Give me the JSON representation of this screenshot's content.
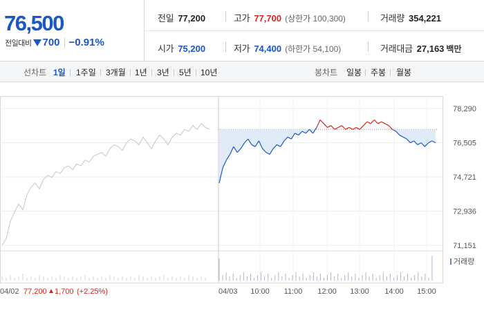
{
  "quote": {
    "current_price": "76,500",
    "change_label": "전일대비",
    "change_value": "700",
    "change_rate": "−0.91%",
    "colors": {
      "up": "#d8251d",
      "down": "#1a56c6"
    }
  },
  "stats": {
    "prev_close": {
      "label": "전일",
      "value": "77,200"
    },
    "high": {
      "label": "고가",
      "value": "77,700",
      "sub": "(상한가 100,300)"
    },
    "volume": {
      "label": "거래량",
      "value": "354,221"
    },
    "open": {
      "label": "시가",
      "value": "75,200"
    },
    "low": {
      "label": "저가",
      "value": "74,400",
      "sub": "(하한가 54,100)"
    },
    "turnover": {
      "label": "거래대금",
      "value": "27,163",
      "unit": "백만"
    }
  },
  "tabs": {
    "line_label": "선차트",
    "line_periods": [
      "1일",
      "1주일",
      "3개월",
      "1년",
      "3년",
      "5년",
      "10년"
    ],
    "active_period": "1일",
    "candle_label": "봉차트",
    "candle_periods": [
      "일봉",
      "주봉",
      "월봉"
    ]
  },
  "chart_data": {
    "type": "line",
    "y_ticks": [
      "78,290",
      "76,505",
      "74,721",
      "72,936",
      "71,151"
    ],
    "y_tick_values": [
      78290,
      76505,
      74721,
      72936,
      71151
    ],
    "reference_price": 77200,
    "x_labels": [
      "04/02",
      "04/03",
      "10:00",
      "11:00",
      "12:00",
      "13:00",
      "14:00",
      "15:00"
    ],
    "prev_day": {
      "date": "04/02",
      "close": "77,200",
      "change": "1,700",
      "rate": "(+2.25%)",
      "values": [
        71150,
        71500,
        72400,
        72900,
        73300,
        73000,
        73800,
        74200,
        74400,
        74100,
        74600,
        74800,
        74700,
        75000,
        74900,
        75200,
        75300,
        75100,
        75400,
        75300,
        75600,
        75500,
        75800,
        75900,
        76000,
        75800,
        76200,
        76400,
        76300,
        76100,
        76500,
        76700,
        76600,
        76400,
        76800,
        76500,
        76200,
        76600,
        76900,
        76700,
        76400,
        76800,
        77000,
        76900,
        77200,
        77100,
        77400,
        77200,
        77500,
        77300,
        77200
      ]
    },
    "today": {
      "date": "04/03",
      "values": [
        74400,
        75200,
        75600,
        75900,
        76300,
        76000,
        76200,
        76500,
        76700,
        76400,
        76300,
        76600,
        76200,
        76000,
        75900,
        76200,
        76400,
        76300,
        76600,
        76800,
        76700,
        77000,
        76900,
        77100,
        77000,
        77200,
        77000,
        77300,
        77700,
        77500,
        77300,
        77400,
        77200,
        77300,
        77400,
        77200,
        77300,
        77200,
        77300,
        77200,
        77400,
        77600,
        77500,
        77700,
        77500,
        77600,
        77500,
        77400,
        77200,
        77100,
        76900,
        76800,
        76700,
        76500,
        76600,
        76400,
        76500,
        76300,
        76500,
        76600,
        76500
      ]
    },
    "volume_label": "거래량"
  }
}
